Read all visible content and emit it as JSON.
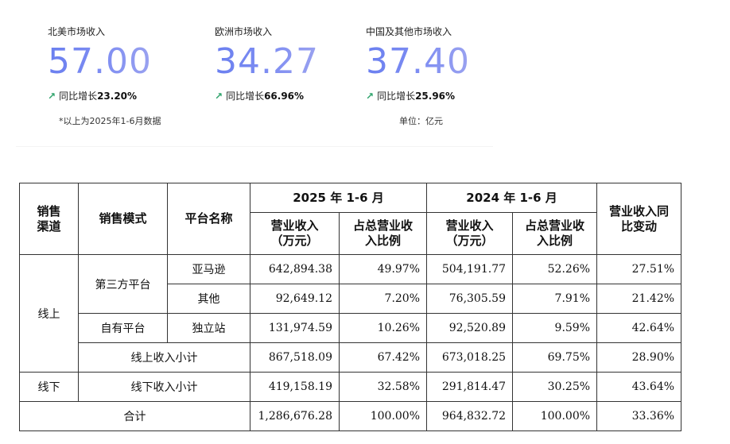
{
  "metrics": [
    {
      "label": "北美市场收入",
      "value": "57.00",
      "growth_prefix": "同比增长",
      "growth": "23.20%"
    },
    {
      "label": "欧洲市场收入",
      "value": "34.27",
      "growth_prefix": "同比增长",
      "growth": "66.96%"
    },
    {
      "label": "中国及其他市场收入",
      "value": "37.40",
      "growth_prefix": "同比增长",
      "growth": "25.96%"
    }
  ],
  "note_left": "*以上为2025年1-6月数据",
  "note_right": "单位：亿元",
  "arrow_icon": "↗",
  "colors": {
    "value_gradient_start": "#6a7ff0",
    "value_gradient_end": "#9aa2f0",
    "arrow": "#2ea36b"
  },
  "table": {
    "headers": {
      "channel": "销售渠道",
      "mode": "销售模式",
      "platform": "平台名称",
      "period_2025": "2025 年 1-6 月",
      "period_2024": "2024 年 1-6 月",
      "revenue": "营业收入（万元）",
      "share": "占总营业收入比例",
      "yoy": "营业收入同比变动"
    },
    "labels": {
      "online": "线上",
      "offline": "线下",
      "third_party": "第三方平台",
      "own_platform": "自有平台",
      "online_subtotal": "线上收入小计",
      "offline_subtotal": "线下收入小计",
      "total": "合计"
    },
    "rows": {
      "amazon": {
        "name": "亚马逊",
        "rev_2025": "642,894.38",
        "share_2025": "49.97%",
        "rev_2024": "504,191.77",
        "share_2024": "52.26%",
        "yoy": "27.51%"
      },
      "other": {
        "name": "其他",
        "rev_2025": "92,649.12",
        "share_2025": "7.20%",
        "rev_2024": "76,305.59",
        "share_2024": "7.91%",
        "yoy": "21.42%"
      },
      "independent": {
        "name": "独立站",
        "rev_2025": "131,974.59",
        "share_2025": "10.26%",
        "rev_2024": "92,520.89",
        "share_2024": "9.59%",
        "yoy": "42.64%"
      },
      "online_subtotal": {
        "rev_2025": "867,518.09",
        "share_2025": "67.42%",
        "rev_2024": "673,018.25",
        "share_2024": "69.75%",
        "yoy": "28.90%"
      },
      "offline_subtotal": {
        "rev_2025": "419,158.19",
        "share_2025": "32.58%",
        "rev_2024": "291,814.47",
        "share_2024": "30.25%",
        "yoy": "43.64%"
      },
      "total": {
        "rev_2025": "1,286,676.28",
        "share_2025": "100.00%",
        "rev_2024": "964,832.72",
        "share_2024": "100.00%",
        "yoy": "33.36%"
      }
    }
  }
}
